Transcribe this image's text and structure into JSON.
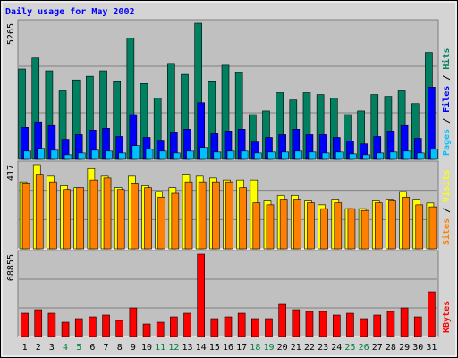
{
  "title": "Daily usage for May 2002",
  "legend_separator": " / ",
  "chart_data": [
    {
      "type": "bar",
      "ylim": [
        0,
        5265
      ],
      "yticks": [
        5265
      ],
      "series": [
        {
          "name": "Hits",
          "color": "#008060",
          "values": [
            3498,
            3923,
            3428,
            2650,
            3075,
            3216,
            3428,
            3004,
            4700,
            2933,
            2368,
            3711,
            3287,
            5265,
            3004,
            3640,
            3357,
            1732,
            1873,
            2580,
            2297,
            2580,
            2509,
            2368,
            1732,
            1873,
            2509,
            2438,
            2650,
            2156,
            4135
          ]
        },
        {
          "name": "Files",
          "color": "#0000ff",
          "values": [
            1237,
            1449,
            1308,
            777,
            954,
            1131,
            1202,
            884,
            1732,
            848,
            742,
            1025,
            1166,
            2191,
            990,
            1096,
            1166,
            671,
            848,
            954,
            1166,
            954,
            954,
            848,
            707,
            601,
            884,
            1096,
            1308,
            813,
            2792
          ]
        },
        {
          "name": "Pages",
          "color": "#00c0ff",
          "values": [
            318,
            424,
            353,
            177,
            247,
            353,
            318,
            247,
            530,
            389,
            318,
            247,
            318,
            459,
            283,
            318,
            318,
            247,
            283,
            283,
            318,
            283,
            247,
            283,
            212,
            177,
            247,
            283,
            318,
            247,
            389
          ]
        }
      ]
    },
    {
      "type": "bar",
      "ylim": [
        0,
        417
      ],
      "yticks": [
        417
      ],
      "series": [
        {
          "name": "Visits",
          "color": "#ffff00",
          "values": [
            332,
            417,
            360,
            313,
            303,
            398,
            360,
            303,
            360,
            313,
            284,
            303,
            370,
            360,
            351,
            341,
            341,
            341,
            237,
            265,
            265,
            237,
            218,
            246,
            199,
            199,
            237,
            246,
            284,
            246,
            227
          ]
        },
        {
          "name": "Sites",
          "color": "#ff8000",
          "values": [
            322,
            370,
            332,
            294,
            303,
            341,
            351,
            294,
            322,
            303,
            256,
            275,
            332,
            332,
            332,
            332,
            303,
            228,
            218,
            246,
            246,
            228,
            199,
            228,
            199,
            190,
            228,
            237,
            256,
            218,
            208
          ]
        }
      ]
    },
    {
      "type": "bar",
      "ylim": [
        0,
        68855
      ],
      "yticks": [
        68855
      ],
      "series": [
        {
          "name": "KBytes",
          "color": "#ff0000",
          "values": [
            19448,
            22440,
            19448,
            11968,
            14960,
            16456,
            17952,
            13464,
            23936,
            10472,
            11968,
            16456,
            19448,
            68855,
            14960,
            16456,
            19448,
            14960,
            14960,
            26928,
            22440,
            20944,
            20944,
            17952,
            19448,
            14960,
            17952,
            20944,
            23936,
            16456,
            37400
          ]
        }
      ],
      "categories": [
        "1",
        "2",
        "3",
        "4",
        "5",
        "6",
        "7",
        "8",
        "9",
        "10",
        "11",
        "12",
        "13",
        "14",
        "15",
        "16",
        "17",
        "18",
        "19",
        "20",
        "21",
        "22",
        "23",
        "24",
        "25",
        "26",
        "27",
        "28",
        "29",
        "30",
        "31"
      ],
      "category_colors": [
        "#000000",
        "#000000",
        "#000000",
        "#008040",
        "#008040",
        "#000000",
        "#000000",
        "#000000",
        "#000000",
        "#000000",
        "#008040",
        "#008040",
        "#000000",
        "#000000",
        "#000000",
        "#000000",
        "#000000",
        "#008040",
        "#008040",
        "#000000",
        "#000000",
        "#000000",
        "#000000",
        "#000000",
        "#008040",
        "#008040",
        "#000000",
        "#000000",
        "#000000",
        "#000000",
        "#000000"
      ]
    }
  ]
}
